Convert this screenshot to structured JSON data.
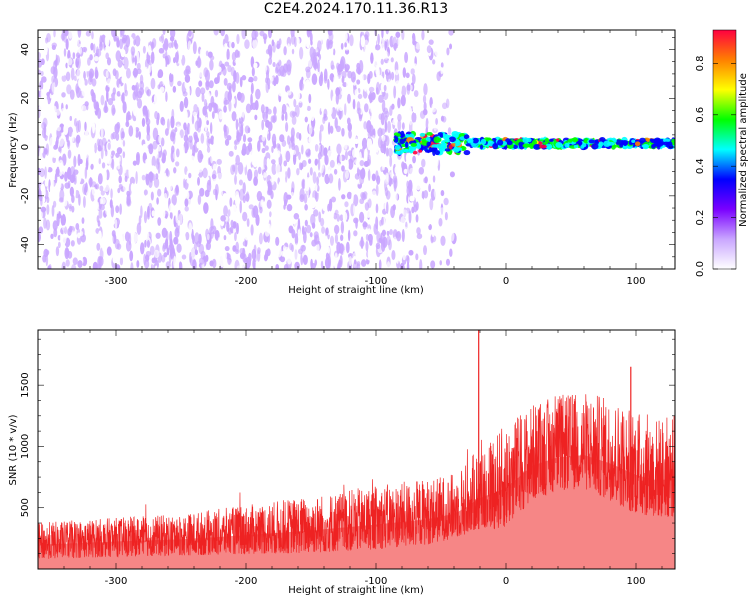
{
  "title": "C2E4.2024.170.11.36.R13",
  "chart_data": [
    {
      "type": "heatmap",
      "xlabel": "Height of straight line (km)",
      "ylabel": "Frequency (Hz)",
      "xlim": [
        -360,
        130
      ],
      "ylim": [
        -50,
        48
      ],
      "xticks": [
        -300,
        -200,
        -100,
        0,
        100
      ],
      "yticks": [
        -40,
        -20,
        0,
        20,
        40
      ],
      "colorbar": {
        "label": "Normalized spectral amplitude",
        "range": [
          0,
          0.93
        ],
        "ticks": [
          0.0,
          0.2,
          0.4,
          0.6,
          0.8
        ],
        "colors": [
          "#ffffff",
          "#e6ccff",
          "#7a00ff",
          "#0000ff",
          "#00ffff",
          "#00ff00",
          "#ffff00",
          "#ff8000",
          "#ff0040"
        ]
      },
      "regions": [
        {
          "x": [
            -360,
            -100
          ],
          "freq": [
            -50,
            48
          ],
          "amplitude": [
            0.0,
            0.15
          ],
          "description": "dense noise"
        },
        {
          "x": [
            -100,
            -40
          ],
          "freq": [
            -50,
            48
          ],
          "amplitude": [
            0.0,
            0.1
          ],
          "description": "fading noise"
        },
        {
          "x": [
            -85,
            130
          ],
          "freq": [
            0,
            3
          ],
          "amplitude": [
            0.3,
            0.93
          ],
          "description": "near-zero signal band"
        }
      ]
    },
    {
      "type": "line",
      "xlabel": "Height of straight line (km)",
      "ylabel": "SNR (10 * v/v)",
      "xlim": [
        -360,
        130
      ],
      "ylim": [
        0,
        1950
      ],
      "xticks": [
        -300,
        -200,
        -100,
        0,
        100
      ],
      "yticks": [
        500,
        1000,
        1500
      ],
      "series": [
        {
          "color": "#ee2222",
          "envelope": {
            "x": [
              -360,
              -300,
              -250,
              -200,
              -150,
              -100,
              -60,
              -40,
              -30,
              -20,
              -10,
              0,
              20,
              40,
              60,
              80,
              100,
              115,
              130
            ],
            "low": [
              80,
              100,
              110,
              120,
              130,
              160,
              200,
              250,
              280,
              330,
              320,
              340,
              560,
              640,
              650,
              560,
              450,
              420,
              420
            ],
            "high": [
              380,
              420,
              450,
              520,
              600,
              680,
              740,
              780,
              880,
              1000,
              1100,
              1180,
              1350,
              1420,
              1450,
              1400,
              1300,
              1240,
              1260
            ]
          },
          "spikes": [
            {
              "x": -21,
              "y": 1950
            },
            {
              "x": 96,
              "y": 1650
            }
          ]
        }
      ]
    }
  ]
}
